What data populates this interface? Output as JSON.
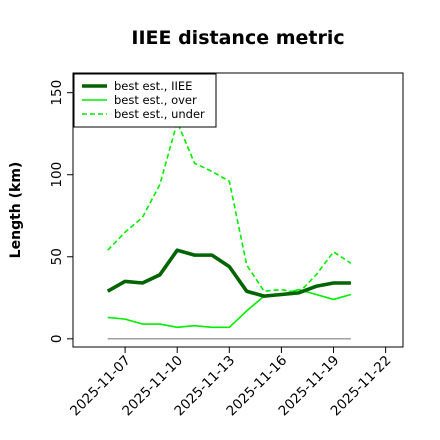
{
  "chart_data": {
    "type": "line",
    "title": "IIEE distance metric",
    "xlabel": "",
    "ylabel": "Length (km)",
    "x": [
      "2025-11-06",
      "2025-11-07",
      "2025-11-08",
      "2025-11-09",
      "2025-11-10",
      "2025-11-11",
      "2025-11-12",
      "2025-11-13",
      "2025-11-14",
      "2025-11-15",
      "2025-11-16",
      "2025-11-17",
      "2025-11-18",
      "2025-11-19",
      "2025-11-20"
    ],
    "xticks": [
      "2025-11-07",
      "2025-11-10",
      "2025-11-13",
      "2025-11-16",
      "2025-11-19",
      "2025-11-22"
    ],
    "xlim": [
      "2025-11-04",
      "2025-11-23"
    ],
    "yticks": [
      0,
      50,
      100,
      150
    ],
    "ylim": [
      -5,
      162
    ],
    "grid": false,
    "legend_position": "top-left",
    "series": [
      {
        "name": "best est., IIEE",
        "color": "#006400",
        "style": "solid-thick",
        "values": [
          29,
          35,
          34,
          39,
          54,
          51,
          51,
          44,
          29,
          26,
          27,
          28,
          32,
          34,
          34
        ]
      },
      {
        "name": "best est., over",
        "color": "#00ee00",
        "style": "solid",
        "values": [
          13,
          12,
          9,
          9,
          7,
          8,
          7,
          7,
          17,
          26,
          27,
          30,
          27,
          24,
          27
        ]
      },
      {
        "name": "best est., under",
        "color": "#00ee00",
        "style": "dashed",
        "values": [
          54,
          65,
          74,
          94,
          132,
          107,
          102,
          96,
          45,
          29,
          30,
          28,
          39,
          53,
          46
        ]
      },
      {
        "name": "",
        "color": "#808080",
        "style": "solid-thin",
        "values": [
          0,
          0,
          0,
          0,
          0,
          0,
          0,
          0,
          0,
          0,
          0,
          0,
          0,
          0,
          0
        ]
      }
    ]
  }
}
